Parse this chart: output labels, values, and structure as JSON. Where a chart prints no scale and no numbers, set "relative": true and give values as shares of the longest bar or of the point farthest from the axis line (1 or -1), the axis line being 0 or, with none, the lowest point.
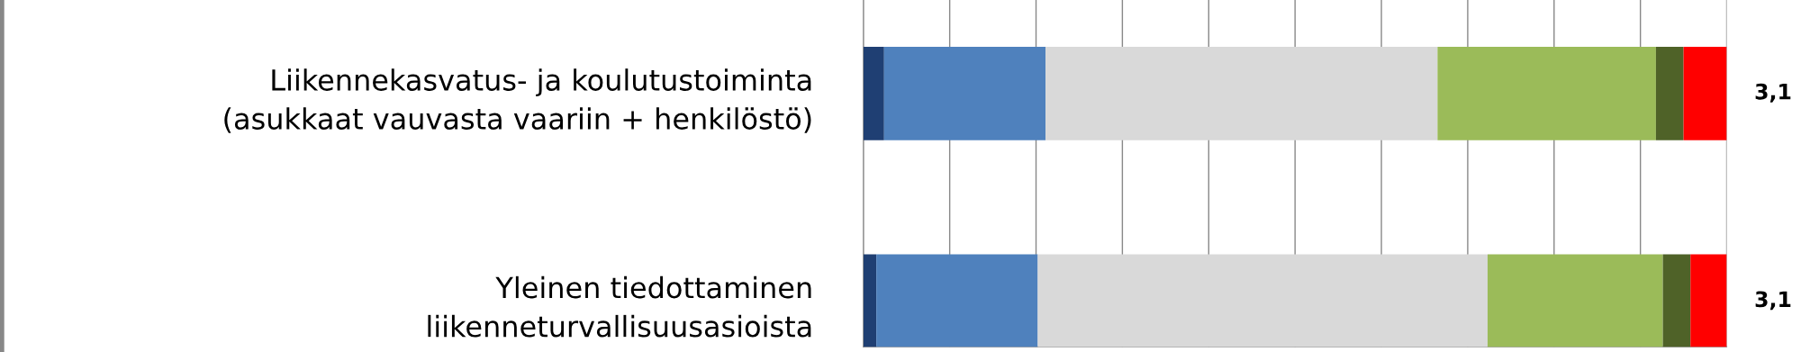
{
  "chart_data": {
    "type": "bar",
    "orientation": "horizontal",
    "stacked": true,
    "relative": true,
    "grid": "x",
    "legend": false,
    "categories": [
      "Liikennekasvatus- ja koulutustoiminta\n(asukkaat vauvasta vaariin + henkilöstö)",
      "Yleinen tiedottaminen\nliikenneturvallisuusasioista"
    ],
    "series": [
      {
        "color": "#1f3f73",
        "values": [
          0.024,
          0.015
        ]
      },
      {
        "color": "#4f81bd",
        "values": [
          0.187,
          0.187
        ]
      },
      {
        "color": "#d9d9d9",
        "values": [
          0.454,
          0.521
        ]
      },
      {
        "color": "#9bbb59",
        "values": [
          0.253,
          0.203
        ]
      },
      {
        "color": "#4f6228",
        "values": [
          0.032,
          0.032
        ]
      },
      {
        "color": "#ff0000",
        "values": [
          0.05,
          0.042
        ]
      }
    ],
    "annotations": [
      "3,1",
      "3,1"
    ]
  }
}
